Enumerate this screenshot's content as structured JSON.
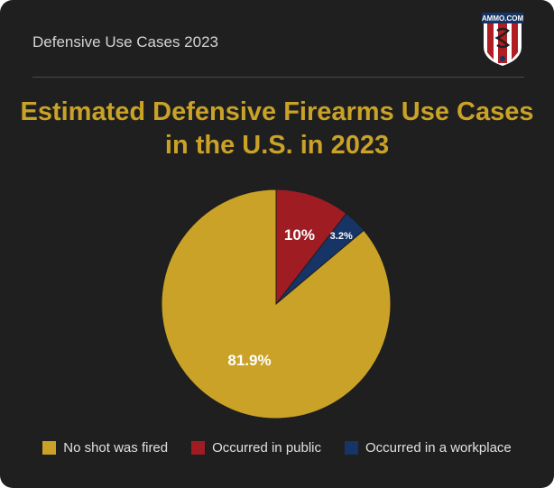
{
  "header": {
    "title": "Defensive Use Cases 2023",
    "logo_text": "AMMO.COM"
  },
  "colors": {
    "background": "#1f1f1f",
    "title": "#c9a227",
    "gold": "#c9a227",
    "red": "#9e1c22",
    "navy": "#163466"
  },
  "chart_data": {
    "type": "pie",
    "title_lines": [
      "Estimated Defensive Firearms Use Cases",
      "in the U.S. in 2023"
    ],
    "slices": [
      {
        "name": "Occurred in public",
        "value": 10,
        "label": "10%",
        "color": "#9e1c22"
      },
      {
        "name": "Occurred in a workplace",
        "value": 3.2,
        "label": "3.2%",
        "color": "#163466"
      },
      {
        "name": "No shot was fired",
        "value": 81.9,
        "label": "81.9%",
        "color": "#c9a227"
      }
    ],
    "legend": [
      {
        "name": "No shot was fired",
        "color": "#c9a227"
      },
      {
        "name": "Occurred in public",
        "color": "#9e1c22"
      },
      {
        "name": "Occurred in a workplace",
        "color": "#163466"
      }
    ],
    "legend_position": "bottom"
  }
}
